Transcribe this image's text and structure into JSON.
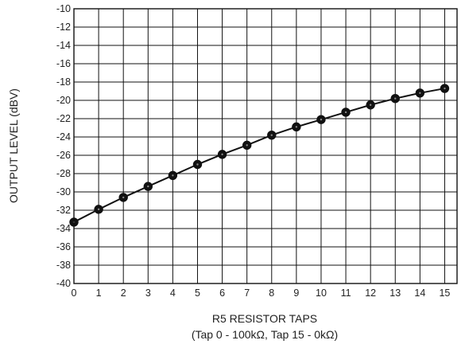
{
  "chart_data": {
    "type": "line",
    "title": "",
    "xlabel": "R5 RESISTOR TAPS",
    "xlabel_sub": "(Tap 0 - 100kΩ, Tap 15 - 0kΩ)",
    "ylabel": "OUTPUT LEVEL (dBV)",
    "xlim": [
      0,
      15.5
    ],
    "ylim": [
      -40,
      -10
    ],
    "x_ticks": [
      0,
      1,
      2,
      3,
      4,
      5,
      6,
      7,
      8,
      9,
      10,
      11,
      12,
      13,
      14,
      15
    ],
    "y_ticks": [
      -10,
      -12,
      -14,
      -16,
      -18,
      -20,
      -22,
      -24,
      -26,
      -28,
      -30,
      -32,
      -34,
      -36,
      -38,
      -40
    ],
    "grid": true,
    "legend": "none",
    "series": [
      {
        "x": [
          0,
          1,
          2,
          3,
          4,
          5,
          6,
          7,
          8,
          9,
          10,
          11,
          12,
          13,
          14,
          15
        ],
        "y": [
          -33.3,
          -31.9,
          -30.6,
          -29.4,
          -28.2,
          -27.0,
          -25.9,
          -24.9,
          -23.8,
          -22.9,
          -22.1,
          -21.3,
          -20.5,
          -19.8,
          -19.2,
          -18.7
        ]
      }
    ]
  }
}
